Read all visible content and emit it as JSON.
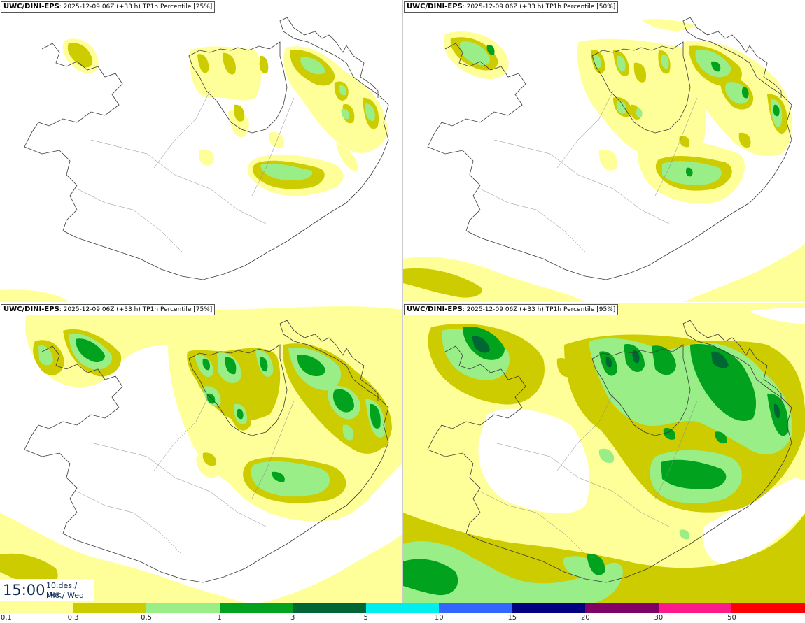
{
  "colors": {
    "c01": "#ffff99",
    "c03": "#cccc00",
    "c05": "#99ee88",
    "c1": "#00a21e",
    "c3": "#006633",
    "c5": "#00eeee",
    "c10": "#3366ff",
    "c15": "#000080",
    "c20": "#800066",
    "c30": "#ff1a8c",
    "c50": "#ff0000",
    "outline": "#3a3a3a"
  },
  "panels": [
    {
      "source": "UWC/DINI-EPS",
      "run": ": 2025-12-09 06Z (+33 h)",
      "title": " TP1h Percentile [25%]"
    },
    {
      "source": "UWC/DINI-EPS",
      "run": ": 2025-12-09 06Z (+33 h)",
      "title": " TP1h Percentile [50%]"
    },
    {
      "source": "UWC/DINI-EPS",
      "run": ": 2025-12-09 06Z (+33 h)",
      "title": " TP1h Percentile [75%]"
    },
    {
      "source": "UWC/DINI-EPS",
      "run": ": 2025-12-09 06Z (+33 h)",
      "title": " TP1h Percentile [95%]"
    }
  ],
  "valid_time": {
    "time": "15:00",
    "date": "10.des./ Dec",
    "weekday": "Mið./ Wed"
  },
  "legend": {
    "labels": [
      "0.1",
      "0.3",
      "0.5",
      "1",
      "3",
      "5",
      "10",
      "15",
      "20",
      "30",
      "50"
    ],
    "colors": [
      "#ffff99",
      "#cccc00",
      "#99ee88",
      "#00a21e",
      "#006633",
      "#00eeee",
      "#3366ff",
      "#000080",
      "#800066",
      "#ff1a8c",
      "#ff0000"
    ]
  }
}
